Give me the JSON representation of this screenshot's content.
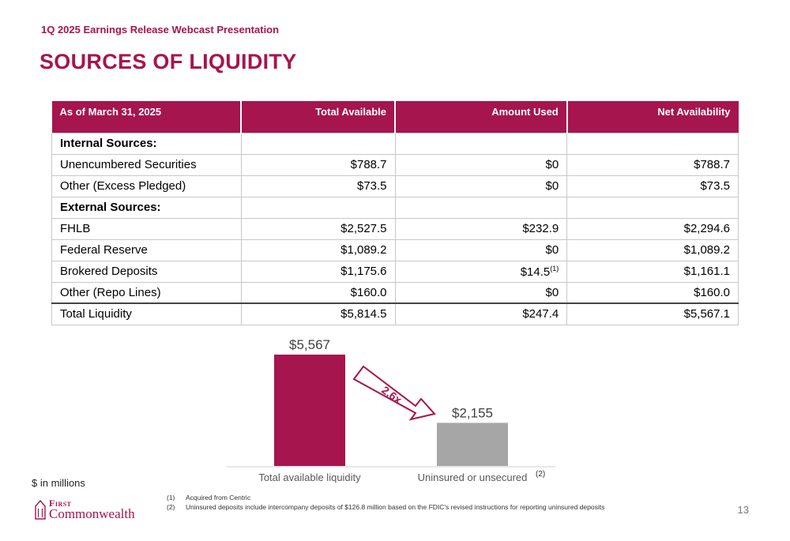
{
  "header": {
    "subtitle": "1Q 2025 Earnings Release Webcast Presentation",
    "title": "SOURCES OF LIQUIDITY"
  },
  "table": {
    "columns": [
      "As of March 31, 2025",
      "Total Available",
      "Amount Used",
      "Net Availability"
    ],
    "rows": [
      {
        "label": "Internal Sources:",
        "section": true,
        "total_available": "",
        "amount_used": "",
        "net_availability": ""
      },
      {
        "label": "Unencumbered Securities",
        "total_available": "$788.7",
        "amount_used": "$0",
        "net_availability": "$788.7"
      },
      {
        "label": "Other (Excess Pledged)",
        "total_available": "$73.5",
        "amount_used": "$0",
        "net_availability": "$73.5"
      },
      {
        "label": "External Sources:",
        "section": true,
        "total_available": "",
        "amount_used": "",
        "net_availability": ""
      },
      {
        "label": "FHLB",
        "total_available": "$2,527.5",
        "amount_used": "$232.9",
        "net_availability": "$2,294.6"
      },
      {
        "label": "Federal Reserve",
        "total_available": "$1,089.2",
        "amount_used": "$0",
        "net_availability": "$1,089.2"
      },
      {
        "label": "Brokered Deposits",
        "total_available": "$1,175.6",
        "amount_used": "$14.5",
        "amount_used_note": "(1)",
        "net_availability": "$1,161.1"
      },
      {
        "label": "Other (Repo Lines)",
        "total_available": "$160.0",
        "amount_used": "$0",
        "net_availability": "$160.0"
      },
      {
        "label": "Total Liquidity",
        "total": true,
        "total_available": "$5,814.5",
        "amount_used": "$247.4",
        "net_availability": "$5,567.1"
      }
    ]
  },
  "chart_data": {
    "type": "bar",
    "categories": [
      "Total available liquidity",
      "Uninsured or unsecured"
    ],
    "values": [
      5567,
      2155
    ],
    "value_labels": [
      "$5,567",
      "$2,155"
    ],
    "category_notes": [
      "",
      "(2)"
    ],
    "colors": [
      "#a6154d",
      "#a6a6a6"
    ],
    "annotation": "2.6x",
    "ylim": [
      0,
      5567
    ],
    "grid": false
  },
  "units_label": "$ in millions",
  "footnotes": [
    {
      "num": "(1)",
      "text": "Acquired from Centric"
    },
    {
      "num": "(2)",
      "text": "Uninsured deposits include intercompany deposits of $126.8 million based on the FDIC's revised instructions for reporting uninsured deposits"
    }
  ],
  "logo": {
    "line1": "First",
    "line2": "Commonwealth"
  },
  "page_number": "13",
  "colors": {
    "accent": "#a6154d",
    "gray_bar": "#a6a6a6"
  }
}
